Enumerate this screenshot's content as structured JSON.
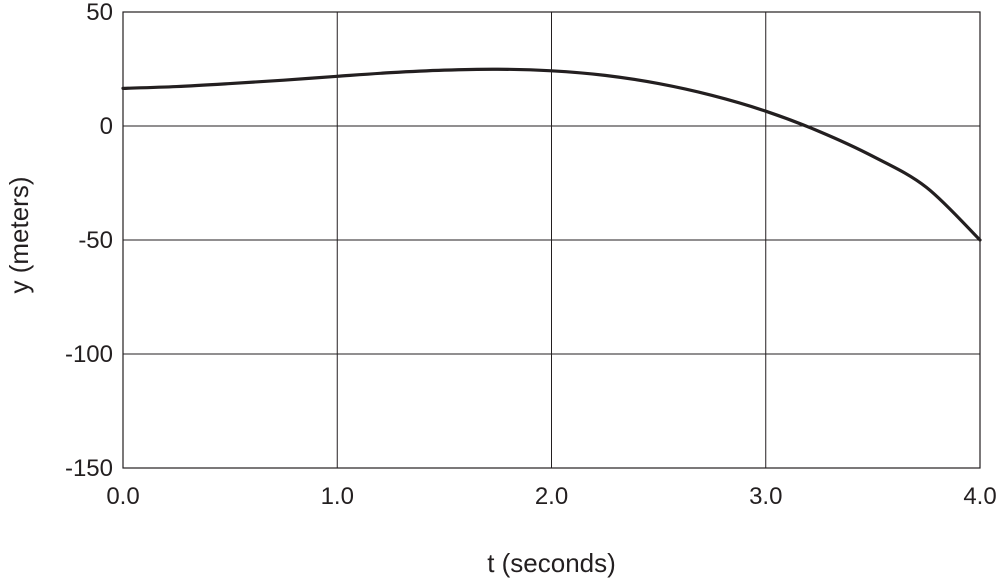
{
  "chart_data": {
    "type": "line",
    "title": "",
    "xlabel": "t (seconds)",
    "ylabel": "y (meters)",
    "xlim": [
      0.0,
      4.0
    ],
    "ylim": [
      -150,
      50
    ],
    "x_ticks": [
      0.0,
      1.0,
      2.0,
      3.0,
      4.0
    ],
    "x_tick_labels": [
      "0.0",
      "1.0",
      "2.0",
      "3.0",
      "4.0"
    ],
    "y_ticks": [
      50,
      0,
      -50,
      -100,
      -150
    ],
    "y_tick_labels": [
      "50",
      "0",
      "-50",
      "-100",
      "-150"
    ],
    "grid": true,
    "legend": "none",
    "series": [
      {
        "color": "#231f20",
        "x": [
          0.0,
          0.25,
          0.5,
          0.75,
          1.0,
          1.25,
          1.5,
          1.75,
          2.0,
          2.25,
          2.5,
          2.75,
          3.0,
          3.25,
          3.5,
          3.75,
          4.0
        ],
        "y": [
          16.5,
          17.3,
          18.6,
          20.1,
          21.8,
          23.4,
          24.5,
          24.9,
          24.2,
          22.2,
          18.6,
          13.4,
          6.5,
          -2.4,
          -13.3,
          -26.9,
          -50.0
        ]
      }
    ]
  }
}
